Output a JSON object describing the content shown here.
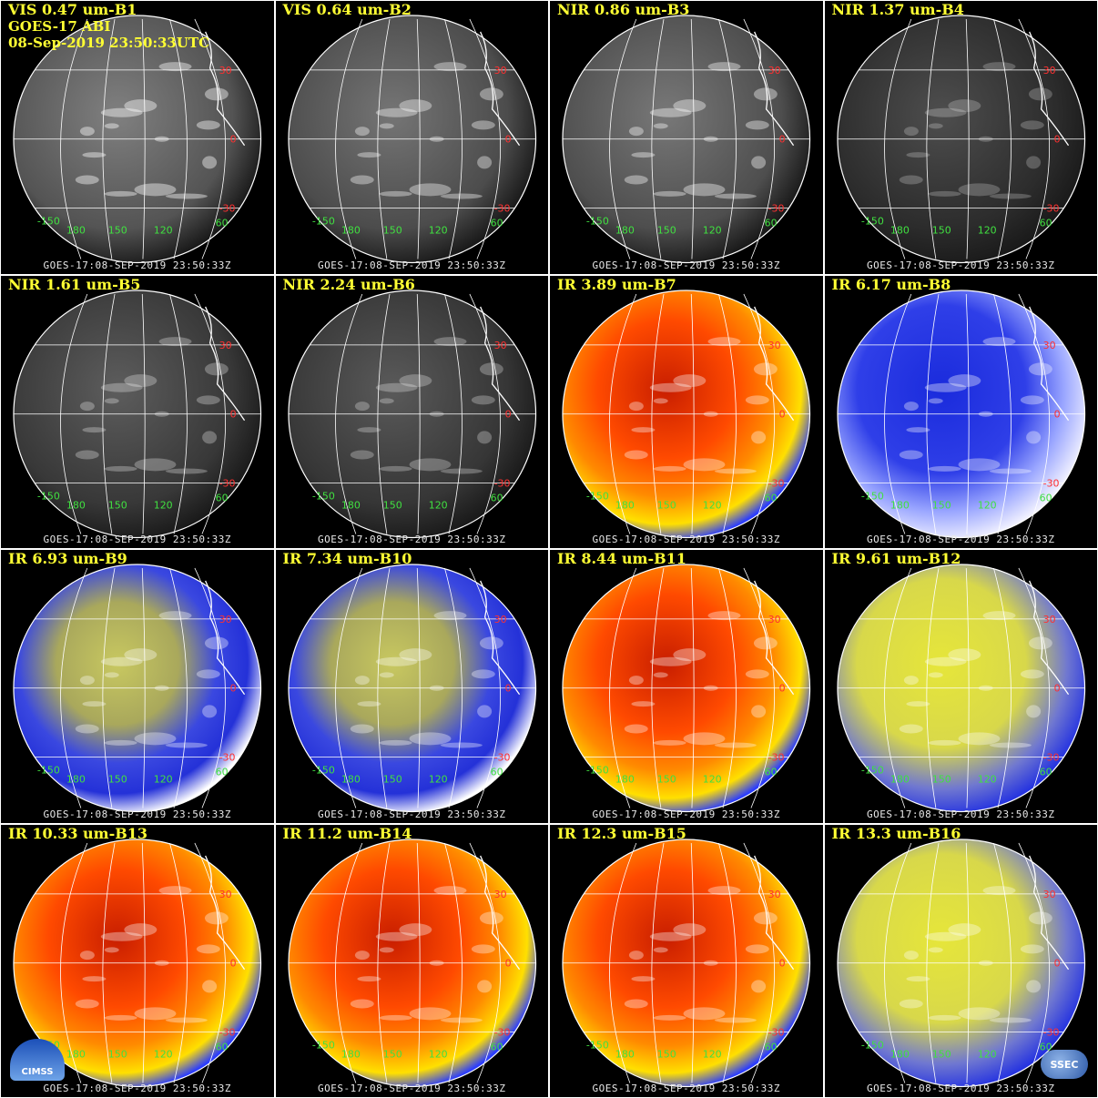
{
  "header": {
    "satellite": "GOES-17 ABI",
    "datetime": "08-Sep-2019 23:50:33UTC"
  },
  "timestamp_label": "GOES-17:08-SEP-2019 23:50:33Z",
  "lat_labels": [
    "30",
    "0",
    "-30"
  ],
  "lon_labels": [
    "-150",
    "180",
    "150",
    "120",
    "60"
  ],
  "logos": {
    "left": "CIMSS",
    "right": "SSEC"
  },
  "panels": [
    {
      "title": "VIS 0.47 um-B1",
      "palette": "gray",
      "brightness": 0.45
    },
    {
      "title": "VIS 0.64 um-B2",
      "palette": "gray",
      "brightness": 0.38
    },
    {
      "title": "NIR 0.86 um-B3",
      "palette": "gray",
      "brightness": 0.4
    },
    {
      "title": "NIR 1.37 um-B4",
      "palette": "gray",
      "brightness": 0.12
    },
    {
      "title": "NIR 1.61 um-B5",
      "palette": "gray",
      "brightness": 0.22
    },
    {
      "title": "NIR 2.24 um-B6",
      "palette": "gray",
      "brightness": 0.2
    },
    {
      "title": "IR 3.89 um-B7",
      "palette": "warm",
      "brightness": 0.6
    },
    {
      "title": "IR 6.17 um-B8",
      "palette": "wv-blue",
      "brightness": 0.5
    },
    {
      "title": "IR 6.93 um-B9",
      "palette": "wv-blue-yellow",
      "brightness": 0.5
    },
    {
      "title": "IR 7.34 um-B10",
      "palette": "wv-blue-yellow",
      "brightness": 0.6
    },
    {
      "title": "IR 8.44 um-B11",
      "palette": "warm",
      "brightness": 0.55
    },
    {
      "title": "IR 9.61 um-B12",
      "palette": "yellow",
      "brightness": 0.5
    },
    {
      "title": "IR 10.33 um-B13",
      "palette": "warm",
      "brightness": 0.55
    },
    {
      "title": "IR 11.2 um-B14",
      "palette": "warm",
      "brightness": 0.55
    },
    {
      "title": "IR 12.3 um-B15",
      "palette": "warm",
      "brightness": 0.55
    },
    {
      "title": "IR 13.3 um-B16",
      "palette": "yellow",
      "brightness": 0.6
    }
  ]
}
